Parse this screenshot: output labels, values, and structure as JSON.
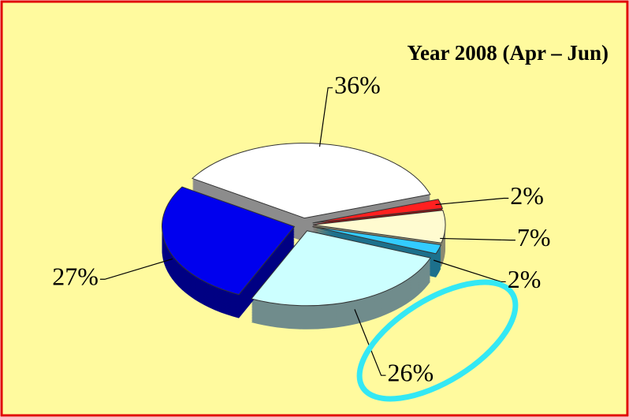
{
  "chart_data": {
    "type": "pie",
    "title": "Year 2008 (Apr – Jun)",
    "values": [
      36,
      2,
      7,
      2,
      26,
      27
    ],
    "value_labels": [
      "36%",
      "2%",
      "7%",
      "2%",
      "26%",
      "27%"
    ],
    "colors": [
      "#ffffff",
      "#ff2020",
      "#fffbd0",
      "#33ccff",
      "#ccffff",
      "#0000ee"
    ]
  }
}
